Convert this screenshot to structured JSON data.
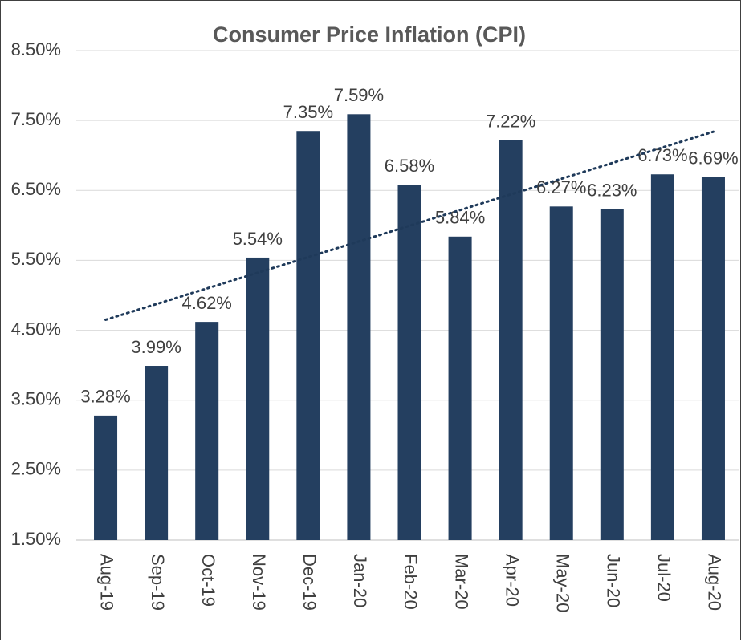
{
  "chart_data": {
    "type": "bar",
    "title": "Consumer  Price Inflation (CPI)",
    "categories": [
      "Aug-19",
      "Sep-19",
      "Oct-19",
      "Nov-19",
      "Dec-19",
      "Jan-20",
      "Feb-20",
      "Mar-20",
      "Apr-20",
      "May-20",
      "Jun-20",
      "Jul-20",
      "Aug-20"
    ],
    "values": [
      3.28,
      3.99,
      4.62,
      5.54,
      7.35,
      7.59,
      6.58,
      5.84,
      7.22,
      6.27,
      6.23,
      6.73,
      6.69
    ],
    "value_labels": [
      "3.28%",
      "3.99%",
      "4.62%",
      "5.54%",
      "7.35%",
      "7.59%",
      "6.58%",
      "5.84%",
      "7.22%",
      "6.27%",
      "6.23%",
      "6.73%",
      "6.69%"
    ],
    "color": "#243f60",
    "ylim": [
      1.5,
      8.5
    ],
    "yticks": [
      {
        "value": 1.5,
        "label": "1.50%"
      },
      {
        "value": 2.5,
        "label": "2.50%"
      },
      {
        "value": 3.5,
        "label": "3.50%"
      },
      {
        "value": 4.5,
        "label": "4.50%"
      },
      {
        "value": 5.5,
        "label": "5.50%"
      },
      {
        "value": 6.5,
        "label": "6.50%"
      },
      {
        "value": 7.5,
        "label": "7.50%"
      },
      {
        "value": 8.5,
        "label": "8.50%"
      }
    ],
    "grid": true,
    "trendline": true
  }
}
